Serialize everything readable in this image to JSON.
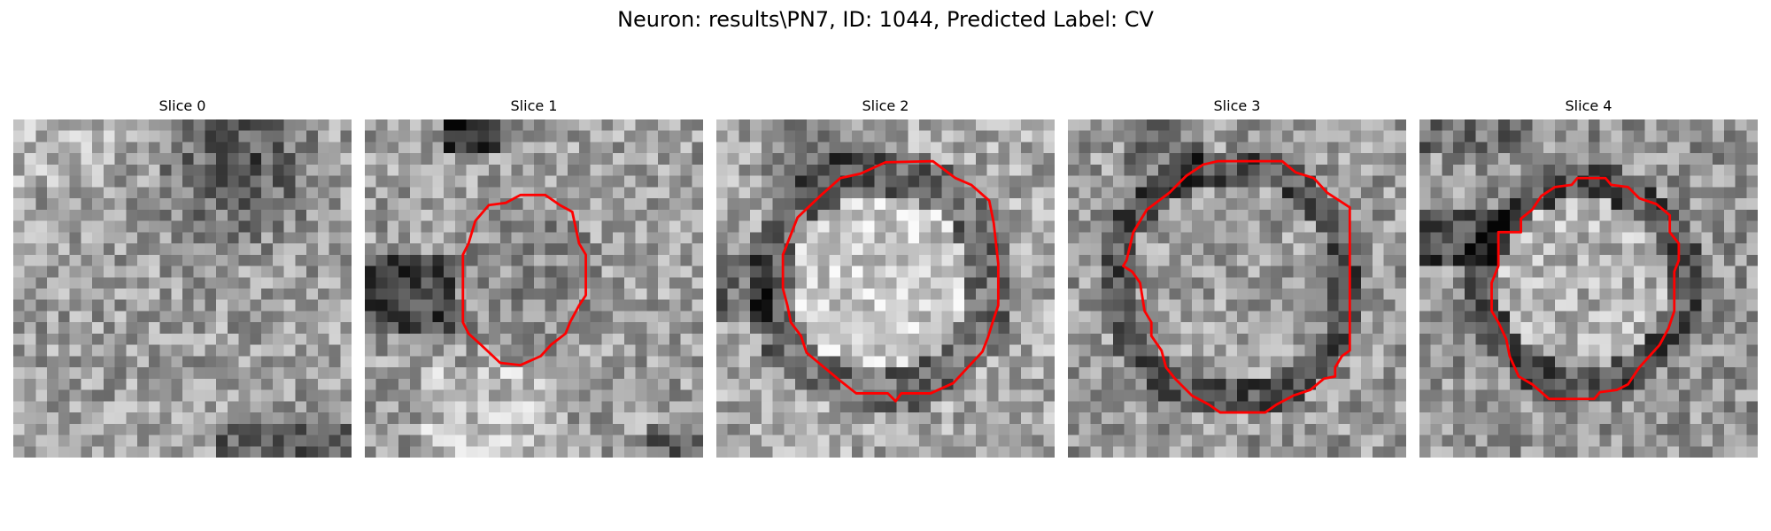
{
  "figure": {
    "title": "Neuron: results\\PN7, ID: 1044, Predicted Label: CV"
  },
  "panels": [
    {
      "title": "Slice 0",
      "has_contour": false
    },
    {
      "title": "Slice 1",
      "has_contour": true
    },
    {
      "title": "Slice 2",
      "has_contour": true
    },
    {
      "title": "Slice 3",
      "has_contour": true
    },
    {
      "title": "Slice 4",
      "has_contour": true
    }
  ],
  "colors": {
    "contour": "#ff0000",
    "colormap": "gray"
  }
}
